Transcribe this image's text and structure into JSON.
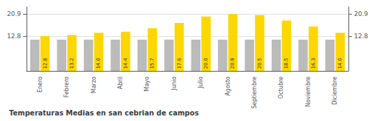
{
  "chart_data": {
    "type": "bar",
    "title": "Temperaturas Medias en san cebrian de campos",
    "categories": [
      "Enero",
      "Febrero",
      "Marzo",
      "Abril",
      "Mayo",
      "Junio",
      "Julio",
      "Agosto",
      "Septiembre",
      "Octubre",
      "Noviembre",
      "Diciembre"
    ],
    "series": [
      {
        "color": "#BBBBBB",
        "values": [
          11.5,
          11.5,
          11.5,
          11.5,
          11.5,
          11.5,
          11.5,
          11.5,
          11.5,
          11.5,
          11.5,
          11.5
        ]
      },
      {
        "color": "#FFD700",
        "values": [
          12.8,
          13.2,
          14.0,
          14.4,
          15.7,
          17.6,
          20.0,
          20.9,
          20.5,
          18.5,
          16.3,
          14.0
        ],
        "value_labels": [
          "12.8",
          "13.2",
          "14.0",
          "14.4",
          "15.7",
          "17.6",
          "20.0",
          "20.9",
          "20.5",
          "18.5",
          "16.3",
          "14.0"
        ],
        "data_labels": true
      }
    ],
    "ylim": [
      0.0,
      23.5
    ],
    "yticks": [
      12.8,
      20.9
    ],
    "y2lim": [
      0.0,
      23.5
    ],
    "y2ticks": [
      12.8,
      20.9
    ],
    "grid": true
  }
}
